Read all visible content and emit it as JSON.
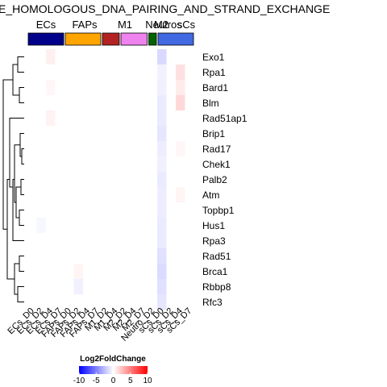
{
  "chart_data": {
    "type": "heatmap",
    "title": "E_HOMOLOGOUS_DNA_PAIRING_AND_STRAND_EXCHANGE",
    "columns": [
      "ECs_D0",
      "ECs_D2",
      "ECs_D4",
      "ECs_D7",
      "FAPs_D0",
      "FAPs_D2",
      "FAPs_D4",
      "FAPs_D7",
      "M1_D2",
      "M1_D4",
      "M2_D2",
      "M2_D4",
      "M2_D7",
      "Neutro_D2",
      "sCs_D0",
      "sCs_D2",
      "sCs_D4",
      "sCs_D7"
    ],
    "rows": [
      "Exo1",
      "Rpa1",
      "Bard1",
      "Blm",
      "Rad51ap1",
      "Brip1",
      "Rad17",
      "Chek1",
      "Palb2",
      "Atm",
      "Topbp1",
      "Hus1",
      "Rpa3",
      "Rad51",
      "Brca1",
      "Rbbp8",
      "Rfc3"
    ],
    "groups": [
      {
        "label": "ECs",
        "color": "#00008B",
        "n": 4
      },
      {
        "label": "FAPs",
        "color": "#FFA500",
        "n": 4
      },
      {
        "label": "M1",
        "color": "#B22222",
        "n": 2
      },
      {
        "label": "M2",
        "color": "#EE82EE",
        "n": 3
      },
      {
        "label": "Neutros",
        "color": "#006400",
        "n": 1
      },
      {
        "label": "sCs",
        "color": "#4169E1",
        "n": 4
      }
    ],
    "values": [
      [
        0,
        0,
        0.6,
        0,
        0,
        0,
        0,
        0,
        0,
        0,
        0,
        0,
        0,
        0,
        -1.5,
        0,
        0,
        0
      ],
      [
        0,
        0,
        0,
        0,
        0,
        0,
        0,
        0,
        0,
        0,
        0,
        0,
        0,
        0,
        -0.5,
        0,
        1.2,
        0
      ],
      [
        0,
        0,
        0.3,
        0,
        0,
        0,
        0,
        0,
        0,
        0,
        0,
        0,
        0,
        0,
        -0.6,
        0,
        0.8,
        0
      ],
      [
        0,
        0,
        0,
        0,
        0,
        0,
        0,
        0,
        0,
        0,
        0,
        0,
        0,
        0,
        -0.8,
        0,
        1.5,
        0
      ],
      [
        0,
        0,
        0.5,
        0,
        0,
        0,
        0,
        0,
        0,
        0,
        0,
        0,
        0,
        0,
        -0.8,
        0,
        0,
        0
      ],
      [
        0,
        0,
        0,
        0,
        0,
        0,
        0,
        0,
        0,
        0,
        0,
        0,
        0,
        0,
        -1.0,
        0,
        0,
        0
      ],
      [
        0,
        0,
        0,
        0,
        0,
        0,
        0,
        0,
        0,
        0,
        0,
        0,
        0,
        0,
        -0.7,
        0,
        0.3,
        0
      ],
      [
        0,
        0,
        0,
        0,
        0,
        0,
        0,
        0,
        0,
        0,
        0,
        0,
        0,
        0,
        -0.6,
        0,
        0,
        0
      ],
      [
        0,
        0,
        0,
        0,
        0,
        0,
        0,
        0,
        0,
        0,
        0,
        0,
        0,
        0,
        -0.8,
        0,
        0,
        0
      ],
      [
        0,
        0,
        0,
        0,
        0,
        0,
        0,
        0,
        0,
        0,
        0,
        0,
        0,
        0,
        -0.7,
        0,
        0.4,
        0
      ],
      [
        0,
        0,
        0,
        0,
        0,
        0,
        0,
        0,
        0,
        0,
        0,
        0,
        0,
        0,
        -0.7,
        0,
        0,
        0
      ],
      [
        0,
        -0.3,
        0,
        0,
        0,
        0,
        0,
        0,
        0,
        0,
        0,
        0,
        0,
        0,
        -0.8,
        0,
        0,
        0
      ],
      [
        0,
        0,
        0,
        0,
        0,
        0,
        0,
        0,
        0,
        0,
        0,
        0,
        0,
        0,
        -0.8,
        0,
        0,
        0
      ],
      [
        0,
        0,
        0,
        0,
        0,
        0,
        0,
        0,
        0,
        0,
        0,
        0,
        0,
        0,
        -1.2,
        0,
        0,
        0
      ],
      [
        0,
        0,
        0,
        0,
        0,
        0.4,
        0,
        0,
        0,
        0,
        0,
        0,
        0,
        0,
        -1.4,
        0,
        0,
        0
      ],
      [
        0,
        0,
        0,
        0,
        0,
        -0.6,
        0,
        0,
        0,
        0,
        0,
        0,
        0,
        0,
        -1.2,
        0,
        0,
        0
      ],
      [
        0,
        0,
        0,
        0,
        0,
        0,
        0,
        0,
        0,
        0,
        0,
        0,
        0,
        0,
        -1.0,
        0,
        0,
        0
      ]
    ],
    "legend": {
      "title": "Log2FoldChange",
      "min": -10,
      "max": 10,
      "ticks": [
        -10,
        -5,
        0,
        5,
        10
      ],
      "low_color": "#0000FF",
      "mid_color": "#FFFFFF",
      "high_color": "#FF0000"
    }
  }
}
